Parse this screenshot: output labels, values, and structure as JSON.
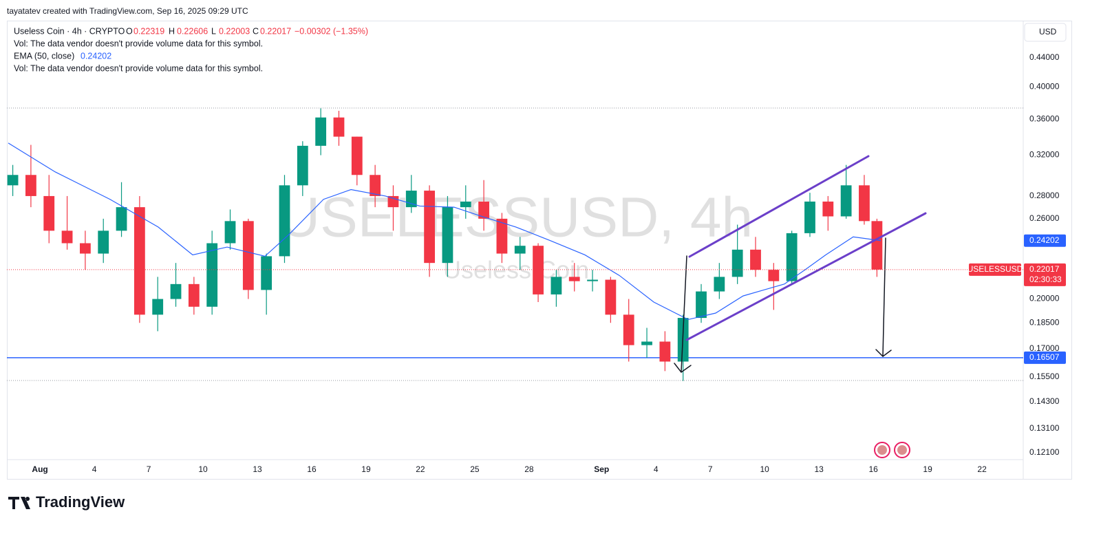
{
  "header": {
    "credit": "tayatatev created with TradingView.com, Sep 16, 2025 09:29 UTC"
  },
  "footer": {
    "logo": "TradingView"
  },
  "chart_data": {
    "type": "candlestick",
    "title": "Useless Coin · 4h · CRYPTO",
    "legend": {
      "o_label": "O",
      "open": 0.22319,
      "h_label": "H",
      "high": 0.22606,
      "l_label": "L",
      "low": 0.22003,
      "c_label": "C",
      "change": "−0.00302 (−1.35%)"
    },
    "notes": [
      "Vol: The data vendor doesn't provide volume data for this symbol.",
      "Vol: The data vendor doesn't provide volume data for this symbol."
    ],
    "watermark": "USELESSUSD, 4h",
    "watermark_sub": "Useless Coin",
    "currency": "USD",
    "symbol_label": "USELESSUSD",
    "countdown": "02:30:33",
    "up_color": "#089981",
    "down_color": "#f23645",
    "log_scale": true,
    "x": [
      -1.5,
      -0.5,
      0.5,
      1.5,
      2.5,
      3.5,
      4.5,
      5.5,
      6.5,
      7.5,
      8.5,
      9.5,
      10.5,
      11.5,
      12.5,
      13.5,
      14.5,
      15.5,
      16.5,
      17.5,
      18.5,
      19.5,
      20.5,
      21.5,
      22.5,
      23.5,
      24.5,
      25.5,
      26.5,
      27.5,
      28.5,
      29.5,
      30.5,
      31.5,
      32.5,
      33.5,
      34.5,
      35.5,
      36.5,
      37.5,
      38.5,
      39.5,
      40.5,
      41.5,
      42.5,
      43.5,
      44.5,
      45.5,
      46.2
    ],
    "open": [
      0.29,
      0.3,
      0.28,
      0.25,
      0.24,
      0.232,
      0.25,
      0.27,
      0.19,
      0.2,
      0.21,
      0.195,
      0.24,
      0.258,
      0.206,
      0.23,
      0.29,
      0.33,
      0.362,
      0.34,
      0.3,
      0.28,
      0.27,
      0.285,
      0.225,
      0.27,
      0.275,
      0.26,
      0.232,
      0.238,
      0.203,
      0.215,
      0.212,
      0.213,
      0.19,
      0.172,
      0.174,
      0.163,
      0.188,
      0.205,
      0.215,
      0.235,
      0.22,
      0.212,
      0.248,
      0.275,
      0.262,
      0.29,
      0.258
    ],
    "high": [
      0.31,
      0.331,
      0.3,
      0.28,
      0.25,
      0.26,
      0.293,
      0.28,
      0.215,
      0.225,
      0.215,
      0.25,
      0.268,
      0.26,
      0.232,
      0.3,
      0.335,
      0.373,
      0.37,
      0.34,
      0.31,
      0.29,
      0.3,
      0.29,
      0.28,
      0.29,
      0.295,
      0.265,
      0.245,
      0.24,
      0.22,
      0.225,
      0.22,
      0.215,
      0.2,
      0.182,
      0.18,
      0.19,
      0.21,
      0.225,
      0.255,
      0.245,
      0.225,
      0.25,
      0.283,
      0.28,
      0.31,
      0.3,
      0.26
    ],
    "low": [
      0.28,
      0.27,
      0.24,
      0.235,
      0.22,
      0.225,
      0.245,
      0.185,
      0.18,
      0.195,
      0.19,
      0.19,
      0.235,
      0.2,
      0.19,
      0.225,
      0.28,
      0.32,
      0.33,
      0.29,
      0.27,
      0.25,
      0.265,
      0.215,
      0.215,
      0.26,
      0.25,
      0.225,
      0.22,
      0.198,
      0.195,
      0.205,
      0.205,
      0.185,
      0.163,
      0.165,
      0.158,
      0.153,
      0.185,
      0.2,
      0.21,
      0.215,
      0.193,
      0.21,
      0.245,
      0.25,
      0.26,
      0.255,
      0.215
    ],
    "close": [
      0.3,
      0.28,
      0.25,
      0.24,
      0.232,
      0.25,
      0.27,
      0.19,
      0.2,
      0.21,
      0.195,
      0.24,
      0.258,
      0.206,
      0.23,
      0.29,
      0.33,
      0.362,
      0.34,
      0.3,
      0.28,
      0.27,
      0.285,
      0.225,
      0.27,
      0.275,
      0.26,
      0.232,
      0.238,
      0.203,
      0.215,
      0.212,
      0.213,
      0.19,
      0.172,
      0.174,
      0.163,
      0.188,
      0.205,
      0.215,
      0.235,
      0.22,
      0.212,
      0.248,
      0.275,
      0.262,
      0.29,
      0.258,
      0.22017
    ],
    "series": [
      {
        "name": "EMA (50, close)",
        "color": "#2962ff",
        "x": [
          -1.75,
          0.84,
          3.87,
          6.53,
          8.43,
          10.33,
          12.42,
          13.75,
          15.65,
          17.17,
          19.07,
          20.96,
          22.86,
          24.38,
          26.28,
          28.18,
          30.08,
          31.98,
          33.88,
          35.78,
          37.3,
          38.81,
          39.95,
          41.09,
          42.23,
          43.37,
          44.89,
          46.41
        ],
        "values": [
          0.333,
          0.303,
          0.277,
          0.253,
          0.231,
          0.237,
          0.23,
          0.247,
          0.277,
          0.286,
          0.28,
          0.271,
          0.27,
          0.262,
          0.253,
          0.242,
          0.231,
          0.216,
          0.198,
          0.187,
          0.191,
          0.202,
          0.206,
          0.21,
          0.22,
          0.231,
          0.245,
          0.24202
        ]
      }
    ],
    "hline": {
      "value": 0.16507,
      "color": "#2962ff"
    },
    "xlim": [
      -1.75,
      54.2
    ],
    "xticks": [
      {
        "value": 0,
        "label": "Aug"
      },
      {
        "value": 3,
        "label": "4"
      },
      {
        "value": 6,
        "label": "7"
      },
      {
        "value": 9,
        "label": "10"
      },
      {
        "value": 12,
        "label": "13"
      },
      {
        "value": 15,
        "label": "16"
      },
      {
        "value": 18,
        "label": "19"
      },
      {
        "value": 21,
        "label": "22"
      },
      {
        "value": 24,
        "label": "25"
      },
      {
        "value": 27,
        "label": "28"
      },
      {
        "value": 31,
        "label": "Sep"
      },
      {
        "value": 34,
        "label": "4"
      },
      {
        "value": 37,
        "label": "7"
      },
      {
        "value": 40,
        "label": "10"
      },
      {
        "value": 43,
        "label": "13"
      },
      {
        "value": 46,
        "label": "16"
      },
      {
        "value": 49,
        "label": "19"
      },
      {
        "value": 52,
        "label": "22"
      }
    ],
    "ylim": [
      0.1183,
      0.4968
    ],
    "yticks": [
      {
        "value": 0.121,
        "label": "0.12100"
      },
      {
        "value": 0.131,
        "label": "0.13100"
      },
      {
        "value": 0.143,
        "label": "0.14300"
      },
      {
        "value": 0.155,
        "label": "0.15500"
      },
      {
        "value": 0.17,
        "label": "0.17000"
      },
      {
        "value": 0.185,
        "label": "0.18500"
      },
      {
        "value": 0.2,
        "label": "0.20000"
      },
      {
        "value": 0.26,
        "label": "0.26000"
      },
      {
        "value": 0.28,
        "label": "0.28000"
      },
      {
        "value": 0.32,
        "label": "0.32000"
      },
      {
        "value": 0.36,
        "label": "0.36000"
      },
      {
        "value": 0.4,
        "label": "0.40000"
      },
      {
        "value": 0.44,
        "label": "0.44000"
      }
    ]
  }
}
